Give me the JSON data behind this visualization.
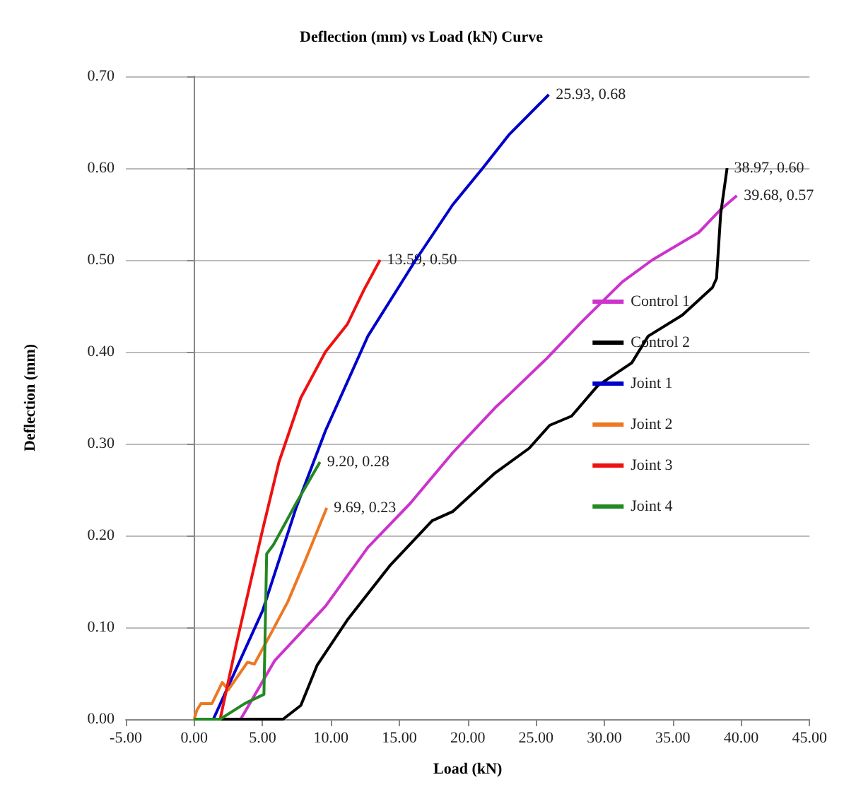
{
  "chart_data": {
    "type": "line",
    "title": "Deflection (mm) vs Load (kN) Curve",
    "xlabel": "Load (kN)",
    "ylabel": "Deflection (mm)",
    "xlim": [
      -5,
      45
    ],
    "xticks": [
      {
        "value": -5,
        "label": "-5.00"
      },
      {
        "value": 0,
        "label": "0.00"
      },
      {
        "value": 5,
        "label": "5.00"
      },
      {
        "value": 10,
        "label": "10.00"
      },
      {
        "value": 15,
        "label": "15.00"
      },
      {
        "value": 20,
        "label": "20.00"
      },
      {
        "value": 25,
        "label": "25.00"
      },
      {
        "value": 30,
        "label": "30.00"
      },
      {
        "value": 35,
        "label": "35.00"
      },
      {
        "value": 40,
        "label": "40.00"
      },
      {
        "value": 45,
        "label": "45.00"
      }
    ],
    "ylim": [
      0,
      0.7
    ],
    "yticks": [
      {
        "value": 0,
        "label": "0.00"
      },
      {
        "value": 0.1,
        "label": "0.10"
      },
      {
        "value": 0.2,
        "label": "0.20"
      },
      {
        "value": 0.3,
        "label": "0.30"
      },
      {
        "value": 0.4,
        "label": "0.40"
      },
      {
        "value": 0.5,
        "label": "0.50"
      },
      {
        "value": 0.6,
        "label": "0.60"
      },
      {
        "value": 0.7,
        "label": "0.70"
      }
    ],
    "grid": "y",
    "legend": "right",
    "marker": "none",
    "line_style": "solid",
    "series": [
      {
        "name": "Control 1",
        "color": "#cc33cc",
        "x": [
          3.4,
          5.9,
          9.6,
          12.7,
          15.8,
          18.9,
          22.0,
          23.0,
          25.8,
          28.3,
          31.3,
          33.5,
          36.9,
          38.5,
          39.68
        ],
        "values": [
          0,
          0.064,
          0.123,
          0.187,
          0.235,
          0.29,
          0.339,
          0.353,
          0.393,
          0.432,
          0.476,
          0.5,
          0.53,
          0.555,
          0.57
        ]
      },
      {
        "name": "Control 2",
        "color": "#000000",
        "x": [
          0,
          6.5,
          7.8,
          9.0,
          11.2,
          14.3,
          17.4,
          18.9,
          22.0,
          24.5,
          26.0,
          27.6,
          29.5,
          32.0,
          33.2,
          35.7,
          37.9,
          38.2,
          38.5,
          38.97
        ],
        "values": [
          0,
          0,
          0.015,
          0.059,
          0.108,
          0.167,
          0.216,
          0.226,
          0.268,
          0.295,
          0.32,
          0.33,
          0.363,
          0.388,
          0.417,
          0.44,
          0.47,
          0.48,
          0.55,
          0.6
        ]
      },
      {
        "name": "Joint 1",
        "color": "#0000cc",
        "x": [
          1.4,
          5.0,
          7.45,
          9.6,
          12.7,
          16.2,
          18.9,
          21.1,
          23.0,
          25.93
        ],
        "values": [
          0,
          0.118,
          0.23,
          0.314,
          0.417,
          0.5,
          0.56,
          0.6,
          0.636,
          0.68
        ]
      },
      {
        "name": "Joint 2",
        "color": "#ee7722",
        "x": [
          0,
          0.2,
          0.5,
          1.3,
          2.05,
          2.5,
          3.9,
          4.4,
          5.6,
          6.85,
          8.1,
          9.69
        ],
        "values": [
          0,
          0.01,
          0.017,
          0.017,
          0.04,
          0.032,
          0.062,
          0.06,
          0.093,
          0.128,
          0.172,
          0.23
        ]
      },
      {
        "name": "Joint 3",
        "color": "#ee1111",
        "x": [
          1.9,
          3.1,
          5.0,
          6.2,
          7.8,
          9.6,
          11.2,
          12.4,
          13.59
        ],
        "values": [
          0,
          0.083,
          0.206,
          0.28,
          0.35,
          0.4,
          0.43,
          0.467,
          0.5
        ]
      },
      {
        "name": "Joint 4",
        "color": "#228822",
        "x": [
          0,
          1.9,
          3.7,
          5.1,
          5.3,
          5.8,
          7.45,
          9.2
        ],
        "values": [
          0,
          0,
          0.017,
          0.027,
          0.18,
          0.19,
          0.235,
          0.28
        ]
      }
    ],
    "annotations": [
      {
        "text": "25.93, 0.68",
        "x": 25.93,
        "y": 0.68
      },
      {
        "text": "13.59, 0.50",
        "x": 13.59,
        "y": 0.5
      },
      {
        "text": "38.97, 0.60",
        "x": 38.97,
        "y": 0.6
      },
      {
        "text": "39.68, 0.57",
        "x": 39.68,
        "y": 0.57
      },
      {
        "text": "9.20, 0.28",
        "x": 9.2,
        "y": 0.28
      },
      {
        "text": "9.69, 0.23",
        "x": 9.69,
        "y": 0.23
      }
    ]
  }
}
